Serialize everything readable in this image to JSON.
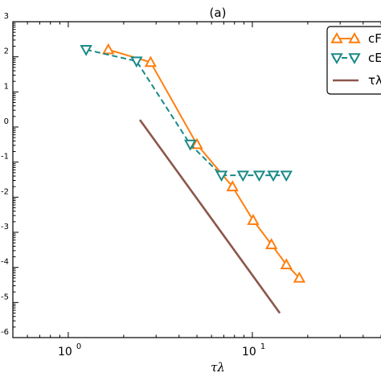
{
  "chart_data": {
    "type": "line",
    "panel_label": "(a)",
    "xlabel": "τλ",
    "x_scale": "log",
    "y_scale": "log",
    "xlim": [
      0.5,
      50
    ],
    "ylim": [
      1e-06,
      1000.0
    ],
    "x_ticks": [
      {
        "value": 1,
        "base": "10",
        "exp": "0"
      },
      {
        "value": 10,
        "base": "10",
        "exp": "1"
      }
    ],
    "y_ticks": [
      {
        "value": 1000.0,
        "exp": "3"
      },
      {
        "value": 100.0,
        "exp": "2"
      },
      {
        "value": 10.0,
        "exp": "1"
      },
      {
        "value": 1.0,
        "exp": "0"
      },
      {
        "value": 0.1,
        "exp": "-1"
      },
      {
        "value": 0.01,
        "exp": "-2"
      },
      {
        "value": 0.001,
        "exp": "-3"
      },
      {
        "value": 0.0001,
        "exp": "-4"
      },
      {
        "value": 1e-05,
        "exp": "-5"
      },
      {
        "value": 1e-06,
        "exp": "-6"
      }
    ],
    "series": [
      {
        "name": "cF",
        "color": "#ff7f0e",
        "marker": "triangle-up",
        "dash": "solid",
        "x": [
          1.65,
          2.8,
          5.0,
          7.8,
          10.1,
          12.7,
          15.3,
          18.0
        ],
        "y": [
          160,
          70,
          0.32,
          0.02,
          0.0022,
          0.00045,
          0.00012,
          5e-05
        ]
      },
      {
        "name": "cE",
        "color": "#1a8a87",
        "marker": "triangle-down",
        "dash": "dashed",
        "x": [
          1.25,
          2.35,
          4.6,
          6.8,
          8.9,
          10.9,
          13.0,
          15.3
        ],
        "y": [
          160,
          75,
          0.32,
          0.042,
          0.042,
          0.042,
          0.042,
          0.042
        ]
      },
      {
        "name": "τλ⁻",
        "color": "#8c564b",
        "marker": "none",
        "dash": "solid",
        "x": [
          2.45,
          14.1
        ],
        "y": [
          1.6,
          5e-06
        ]
      }
    ],
    "legend": {
      "position": "top-right",
      "entries": [
        "cF",
        "cE",
        "τλ⁻"
      ]
    }
  }
}
